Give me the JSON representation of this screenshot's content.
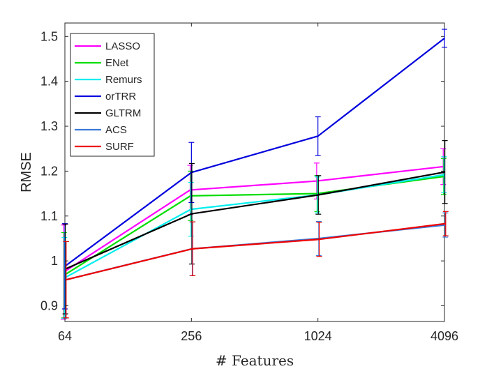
{
  "chart_data": {
    "type": "line",
    "xlabel": "# Features",
    "ylabel": "RMSE",
    "x": [
      64,
      256,
      1024,
      4096
    ],
    "x_scale": "log",
    "xlim": [
      64,
      4096
    ],
    "ylim": [
      0.865,
      1.53
    ],
    "yticks": [
      0.9,
      1,
      1.1,
      1.2,
      1.3,
      1.4,
      1.5
    ],
    "ytick_labels": [
      "0.9",
      "1",
      "1.1",
      "1.2",
      "1.3",
      "1.4",
      "1.5"
    ],
    "xtick_labels": [
      "64",
      "256",
      "1024",
      "4096"
    ],
    "grid": false,
    "legend_position": "top-left",
    "series": [
      {
        "name": "LASSO",
        "color": "#ff00ff",
        "values": [
          0.975,
          1.158,
          1.178,
          1.21
        ],
        "error": [
          0.105,
          0.055,
          0.04,
          0.04
        ]
      },
      {
        "name": "ENet",
        "color": "#00dd00",
        "values": [
          0.968,
          1.145,
          1.15,
          1.188
        ],
        "error": [
          0.095,
          0.055,
          0.04,
          0.04
        ]
      },
      {
        "name": "Remurs",
        "color": "#00eeee",
        "values": [
          0.962,
          1.115,
          1.147,
          1.192
        ],
        "error": [
          0.09,
          0.06,
          0.04,
          0.04
        ]
      },
      {
        "name": "orTRR",
        "color": "#0000dd",
        "values": [
          0.988,
          1.197,
          1.278,
          1.496
        ],
        "error": [
          0.095,
          0.067,
          0.043,
          0.02
        ]
      },
      {
        "name": "GLTRM",
        "color": "#000000",
        "values": [
          0.982,
          1.105,
          1.147,
          1.198
        ],
        "error": [
          0.1,
          0.112,
          0.043,
          0.07
        ]
      },
      {
        "name": "ACS",
        "color": "#3a78d8",
        "values": [
          0.958,
          1.027,
          1.05,
          1.08
        ],
        "error": [
          0.085,
          0.06,
          0.038,
          0.027
        ]
      },
      {
        "name": "SURF",
        "color": "#ee0000",
        "values": [
          0.958,
          1.027,
          1.048,
          1.083
        ],
        "error": [
          0.085,
          0.06,
          0.038,
          0.027
        ]
      }
    ]
  }
}
